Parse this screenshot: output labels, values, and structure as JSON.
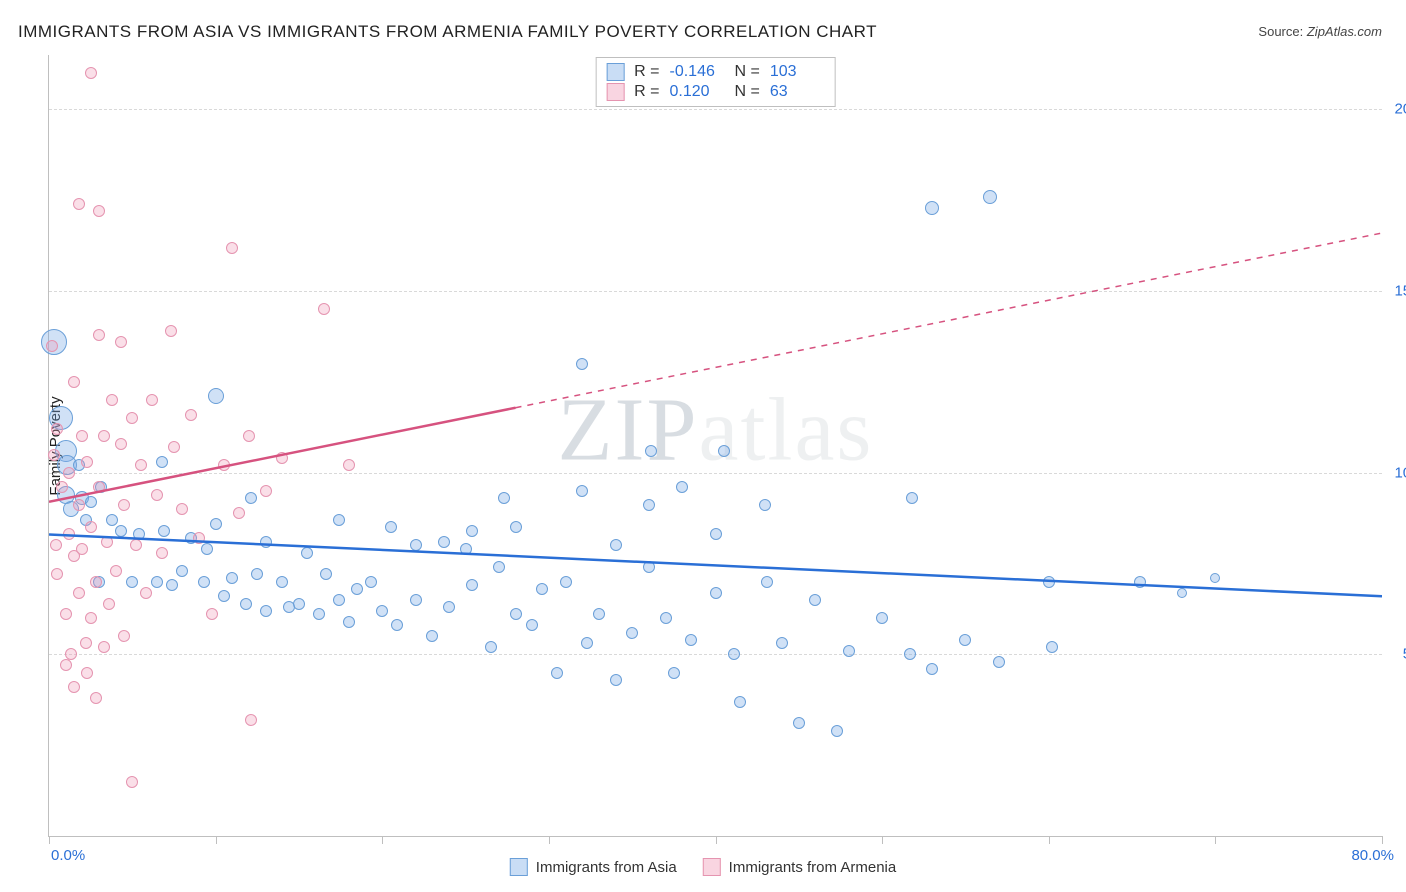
{
  "title": "IMMIGRANTS FROM ASIA VS IMMIGRANTS FROM ARMENIA FAMILY POVERTY CORRELATION CHART",
  "source_label": "Source:",
  "source_value": "ZipAtlas.com",
  "ylabel": "Family Poverty",
  "watermark_a": "ZIP",
  "watermark_b": "atlas",
  "chart": {
    "type": "scatter",
    "xlim": [
      0,
      80
    ],
    "ylim": [
      0,
      21.5
    ],
    "yticks": [
      5.0,
      10.0,
      15.0,
      20.0
    ],
    "ytick_labels": [
      "5.0%",
      "10.0%",
      "15.0%",
      "20.0%"
    ],
    "xtick_positions": [
      0,
      10,
      20,
      30,
      40,
      50,
      60,
      70,
      80
    ],
    "x_left_label": "0.0%",
    "x_right_label": "80.0%",
    "background_color": "#ffffff",
    "grid_color": "#d9d9d9",
    "axis_color": "#bfbfbf",
    "tick_label_color": "#2a6fd6",
    "series": [
      {
        "name": "Immigrants from Asia",
        "color_fill": "rgba(120,170,230,0.35)",
        "color_stroke": "#6a9fd8",
        "R": "-0.146",
        "N": "103",
        "trend": {
          "y_at_x0": 8.3,
          "y_at_x80": 6.6,
          "solid_until_x": 80,
          "color": "#2a6fd6"
        },
        "points": [
          {
            "x": 0.3,
            "y": 13.6,
            "r": 26
          },
          {
            "x": 0.7,
            "y": 11.5,
            "r": 24
          },
          {
            "x": 1.0,
            "y": 10.6,
            "r": 22
          },
          {
            "x": 1.1,
            "y": 10.2,
            "r": 20
          },
          {
            "x": 1.0,
            "y": 9.4,
            "r": 18
          },
          {
            "x": 1.8,
            "y": 10.2,
            "r": 12
          },
          {
            "x": 1.3,
            "y": 9.0,
            "r": 16
          },
          {
            "x": 2.0,
            "y": 9.3,
            "r": 14
          },
          {
            "x": 2.2,
            "y": 8.7,
            "r": 12
          },
          {
            "x": 2.5,
            "y": 9.2,
            "r": 12
          },
          {
            "x": 3.1,
            "y": 9.6,
            "r": 12
          },
          {
            "x": 3.0,
            "y": 7.0,
            "r": 12
          },
          {
            "x": 3.8,
            "y": 8.7,
            "r": 12
          },
          {
            "x": 4.3,
            "y": 8.4,
            "r": 12
          },
          {
            "x": 5.0,
            "y": 7.0,
            "r": 12
          },
          {
            "x": 5.4,
            "y": 8.3,
            "r": 12
          },
          {
            "x": 6.5,
            "y": 7.0,
            "r": 12
          },
          {
            "x": 6.9,
            "y": 8.4,
            "r": 12
          },
          {
            "x": 6.8,
            "y": 10.3,
            "r": 12
          },
          {
            "x": 7.4,
            "y": 6.9,
            "r": 12
          },
          {
            "x": 8.0,
            "y": 7.3,
            "r": 12
          },
          {
            "x": 8.5,
            "y": 8.2,
            "r": 12
          },
          {
            "x": 9.3,
            "y": 7.0,
            "r": 12
          },
          {
            "x": 9.5,
            "y": 7.9,
            "r": 12
          },
          {
            "x": 10.0,
            "y": 12.1,
            "r": 16
          },
          {
            "x": 10.0,
            "y": 8.6,
            "r": 12
          },
          {
            "x": 10.5,
            "y": 6.6,
            "r": 12
          },
          {
            "x": 11.0,
            "y": 7.1,
            "r": 12
          },
          {
            "x": 11.8,
            "y": 6.4,
            "r": 12
          },
          {
            "x": 12.1,
            "y": 9.3,
            "r": 12
          },
          {
            "x": 12.5,
            "y": 7.2,
            "r": 12
          },
          {
            "x": 13.0,
            "y": 8.1,
            "r": 12
          },
          {
            "x": 13.0,
            "y": 6.2,
            "r": 12
          },
          {
            "x": 14.0,
            "y": 7.0,
            "r": 12
          },
          {
            "x": 14.4,
            "y": 6.3,
            "r": 12
          },
          {
            "x": 15.0,
            "y": 6.4,
            "r": 12
          },
          {
            "x": 15.5,
            "y": 7.8,
            "r": 12
          },
          {
            "x": 16.2,
            "y": 6.1,
            "r": 12
          },
          {
            "x": 16.6,
            "y": 7.2,
            "r": 12
          },
          {
            "x": 17.4,
            "y": 6.5,
            "r": 12
          },
          {
            "x": 17.4,
            "y": 8.7,
            "r": 12
          },
          {
            "x": 18.0,
            "y": 5.9,
            "r": 12
          },
          {
            "x": 18.5,
            "y": 6.8,
            "r": 12
          },
          {
            "x": 19.3,
            "y": 7.0,
            "r": 12
          },
          {
            "x": 20.0,
            "y": 6.2,
            "r": 12
          },
          {
            "x": 20.5,
            "y": 8.5,
            "r": 12
          },
          {
            "x": 20.9,
            "y": 5.8,
            "r": 12
          },
          {
            "x": 22.0,
            "y": 6.5,
            "r": 12
          },
          {
            "x": 22.0,
            "y": 8.0,
            "r": 12
          },
          {
            "x": 23.0,
            "y": 5.5,
            "r": 12
          },
          {
            "x": 23.7,
            "y": 8.1,
            "r": 12
          },
          {
            "x": 24.0,
            "y": 6.3,
            "r": 12
          },
          {
            "x": 25.0,
            "y": 7.9,
            "r": 12
          },
          {
            "x": 25.4,
            "y": 6.9,
            "r": 12
          },
          {
            "x": 25.4,
            "y": 8.4,
            "r": 12
          },
          {
            "x": 26.5,
            "y": 5.2,
            "r": 12
          },
          {
            "x": 27.0,
            "y": 7.4,
            "r": 12
          },
          {
            "x": 27.3,
            "y": 9.3,
            "r": 12
          },
          {
            "x": 28.0,
            "y": 8.5,
            "r": 12
          },
          {
            "x": 28.0,
            "y": 6.1,
            "r": 12
          },
          {
            "x": 29.0,
            "y": 5.8,
            "r": 12
          },
          {
            "x": 29.6,
            "y": 6.8,
            "r": 12
          },
          {
            "x": 30.5,
            "y": 4.5,
            "r": 12
          },
          {
            "x": 31.0,
            "y": 7.0,
            "r": 12
          },
          {
            "x": 32.0,
            "y": 9.5,
            "r": 12
          },
          {
            "x": 32.0,
            "y": 13.0,
            "r": 12
          },
          {
            "x": 32.3,
            "y": 5.3,
            "r": 12
          },
          {
            "x": 33.0,
            "y": 6.1,
            "r": 12
          },
          {
            "x": 34.0,
            "y": 8.0,
            "r": 12
          },
          {
            "x": 34.0,
            "y": 4.3,
            "r": 12
          },
          {
            "x": 35.0,
            "y": 5.6,
            "r": 12
          },
          {
            "x": 36.0,
            "y": 7.4,
            "r": 12
          },
          {
            "x": 36.0,
            "y": 9.1,
            "r": 12
          },
          {
            "x": 36.1,
            "y": 10.6,
            "r": 12
          },
          {
            "x": 37.0,
            "y": 6.0,
            "r": 12
          },
          {
            "x": 37.5,
            "y": 4.5,
            "r": 12
          },
          {
            "x": 38.0,
            "y": 9.6,
            "r": 12
          },
          {
            "x": 38.5,
            "y": 5.4,
            "r": 12
          },
          {
            "x": 40.0,
            "y": 8.3,
            "r": 12
          },
          {
            "x": 40.0,
            "y": 6.7,
            "r": 12
          },
          {
            "x": 40.5,
            "y": 10.6,
            "r": 12
          },
          {
            "x": 41.1,
            "y": 5.0,
            "r": 12
          },
          {
            "x": 41.5,
            "y": 3.7,
            "r": 12
          },
          {
            "x": 43.0,
            "y": 9.1,
            "r": 12
          },
          {
            "x": 43.1,
            "y": 7.0,
            "r": 12
          },
          {
            "x": 44.0,
            "y": 5.3,
            "r": 12
          },
          {
            "x": 45.0,
            "y": 3.1,
            "r": 12
          },
          {
            "x": 46.0,
            "y": 6.5,
            "r": 12
          },
          {
            "x": 47.3,
            "y": 2.9,
            "r": 12
          },
          {
            "x": 48.0,
            "y": 5.1,
            "r": 12
          },
          {
            "x": 50.0,
            "y": 6.0,
            "r": 12
          },
          {
            "x": 51.7,
            "y": 5.0,
            "r": 12
          },
          {
            "x": 51.8,
            "y": 9.3,
            "r": 12
          },
          {
            "x": 53.0,
            "y": 4.6,
            "r": 12
          },
          {
            "x": 53.0,
            "y": 17.3,
            "r": 14
          },
          {
            "x": 55.0,
            "y": 5.4,
            "r": 12
          },
          {
            "x": 56.5,
            "y": 17.6,
            "r": 14
          },
          {
            "x": 57.0,
            "y": 4.8,
            "r": 12
          },
          {
            "x": 60.0,
            "y": 7.0,
            "r": 12
          },
          {
            "x": 60.2,
            "y": 5.2,
            "r": 12
          },
          {
            "x": 65.5,
            "y": 7.0,
            "r": 12
          },
          {
            "x": 68.0,
            "y": 6.7,
            "r": 10
          },
          {
            "x": 70.0,
            "y": 7.1,
            "r": 10
          }
        ]
      },
      {
        "name": "Immigrants from Armenia",
        "color_fill": "rgba(240,150,180,0.30)",
        "color_stroke": "#e594b0",
        "R": "0.120",
        "N": "63",
        "trend": {
          "y_at_x0": 9.2,
          "y_at_x80": 16.6,
          "solid_until_x": 28,
          "color": "#d6527f"
        },
        "points": [
          {
            "x": 0.3,
            "y": 10.5,
            "r": 12
          },
          {
            "x": 0.4,
            "y": 8.0,
            "r": 12
          },
          {
            "x": 0.5,
            "y": 7.2,
            "r": 12
          },
          {
            "x": 0.5,
            "y": 11.2,
            "r": 12
          },
          {
            "x": 0.2,
            "y": 13.5,
            "r": 12
          },
          {
            "x": 0.8,
            "y": 9.6,
            "r": 12
          },
          {
            "x": 1.0,
            "y": 6.1,
            "r": 12
          },
          {
            "x": 1.0,
            "y": 4.7,
            "r": 12
          },
          {
            "x": 1.2,
            "y": 8.3,
            "r": 12
          },
          {
            "x": 1.2,
            "y": 10.0,
            "r": 12
          },
          {
            "x": 1.3,
            "y": 5.0,
            "r": 12
          },
          {
            "x": 1.5,
            "y": 7.7,
            "r": 12
          },
          {
            "x": 1.5,
            "y": 12.5,
            "r": 12
          },
          {
            "x": 1.5,
            "y": 4.1,
            "r": 12
          },
          {
            "x": 1.8,
            "y": 6.7,
            "r": 12
          },
          {
            "x": 1.8,
            "y": 9.1,
            "r": 12
          },
          {
            "x": 1.8,
            "y": 17.4,
            "r": 12
          },
          {
            "x": 2.0,
            "y": 11.0,
            "r": 12
          },
          {
            "x": 2.0,
            "y": 7.9,
            "r": 12
          },
          {
            "x": 2.2,
            "y": 5.3,
            "r": 12
          },
          {
            "x": 2.3,
            "y": 10.3,
            "r": 12
          },
          {
            "x": 2.3,
            "y": 4.5,
            "r": 12
          },
          {
            "x": 2.5,
            "y": 21.0,
            "r": 12
          },
          {
            "x": 2.5,
            "y": 8.5,
            "r": 12
          },
          {
            "x": 2.5,
            "y": 6.0,
            "r": 12
          },
          {
            "x": 2.8,
            "y": 3.8,
            "r": 12
          },
          {
            "x": 2.8,
            "y": 7.0,
            "r": 12
          },
          {
            "x": 3.0,
            "y": 9.6,
            "r": 12
          },
          {
            "x": 3.0,
            "y": 13.8,
            "r": 12
          },
          {
            "x": 3.0,
            "y": 17.2,
            "r": 12
          },
          {
            "x": 3.3,
            "y": 11.0,
            "r": 12
          },
          {
            "x": 3.3,
            "y": 5.2,
            "r": 12
          },
          {
            "x": 3.5,
            "y": 8.1,
            "r": 12
          },
          {
            "x": 3.6,
            "y": 6.4,
            "r": 12
          },
          {
            "x": 3.8,
            "y": 12.0,
            "r": 12
          },
          {
            "x": 4.0,
            "y": 7.3,
            "r": 12
          },
          {
            "x": 4.3,
            "y": 10.8,
            "r": 12
          },
          {
            "x": 4.3,
            "y": 13.6,
            "r": 12
          },
          {
            "x": 4.5,
            "y": 9.1,
            "r": 12
          },
          {
            "x": 4.5,
            "y": 5.5,
            "r": 12
          },
          {
            "x": 5.0,
            "y": 11.5,
            "r": 12
          },
          {
            "x": 5.0,
            "y": 1.5,
            "r": 12
          },
          {
            "x": 5.2,
            "y": 8.0,
            "r": 12
          },
          {
            "x": 5.5,
            "y": 10.2,
            "r": 12
          },
          {
            "x": 5.8,
            "y": 6.7,
            "r": 12
          },
          {
            "x": 6.2,
            "y": 12.0,
            "r": 12
          },
          {
            "x": 6.5,
            "y": 9.4,
            "r": 12
          },
          {
            "x": 6.8,
            "y": 7.8,
            "r": 12
          },
          {
            "x": 7.3,
            "y": 13.9,
            "r": 12
          },
          {
            "x": 7.5,
            "y": 10.7,
            "r": 12
          },
          {
            "x": 8.0,
            "y": 9.0,
            "r": 12
          },
          {
            "x": 8.5,
            "y": 11.6,
            "r": 12
          },
          {
            "x": 9.0,
            "y": 8.2,
            "r": 12
          },
          {
            "x": 9.8,
            "y": 6.1,
            "r": 12
          },
          {
            "x": 10.5,
            "y": 10.2,
            "r": 12
          },
          {
            "x": 11.0,
            "y": 16.2,
            "r": 12
          },
          {
            "x": 11.4,
            "y": 8.9,
            "r": 12
          },
          {
            "x": 12.0,
            "y": 11.0,
            "r": 12
          },
          {
            "x": 12.1,
            "y": 3.2,
            "r": 12
          },
          {
            "x": 13.0,
            "y": 9.5,
            "r": 12
          },
          {
            "x": 14.0,
            "y": 10.4,
            "r": 12
          },
          {
            "x": 16.5,
            "y": 14.5,
            "r": 12
          },
          {
            "x": 18.0,
            "y": 10.2,
            "r": 12
          }
        ]
      }
    ]
  },
  "stats_labels": {
    "R": "R =",
    "N": "N ="
  },
  "bottom_legend": [
    {
      "swatch": "blue",
      "label": "Immigrants from Asia"
    },
    {
      "swatch": "pink",
      "label": "Immigrants from Armenia"
    }
  ]
}
